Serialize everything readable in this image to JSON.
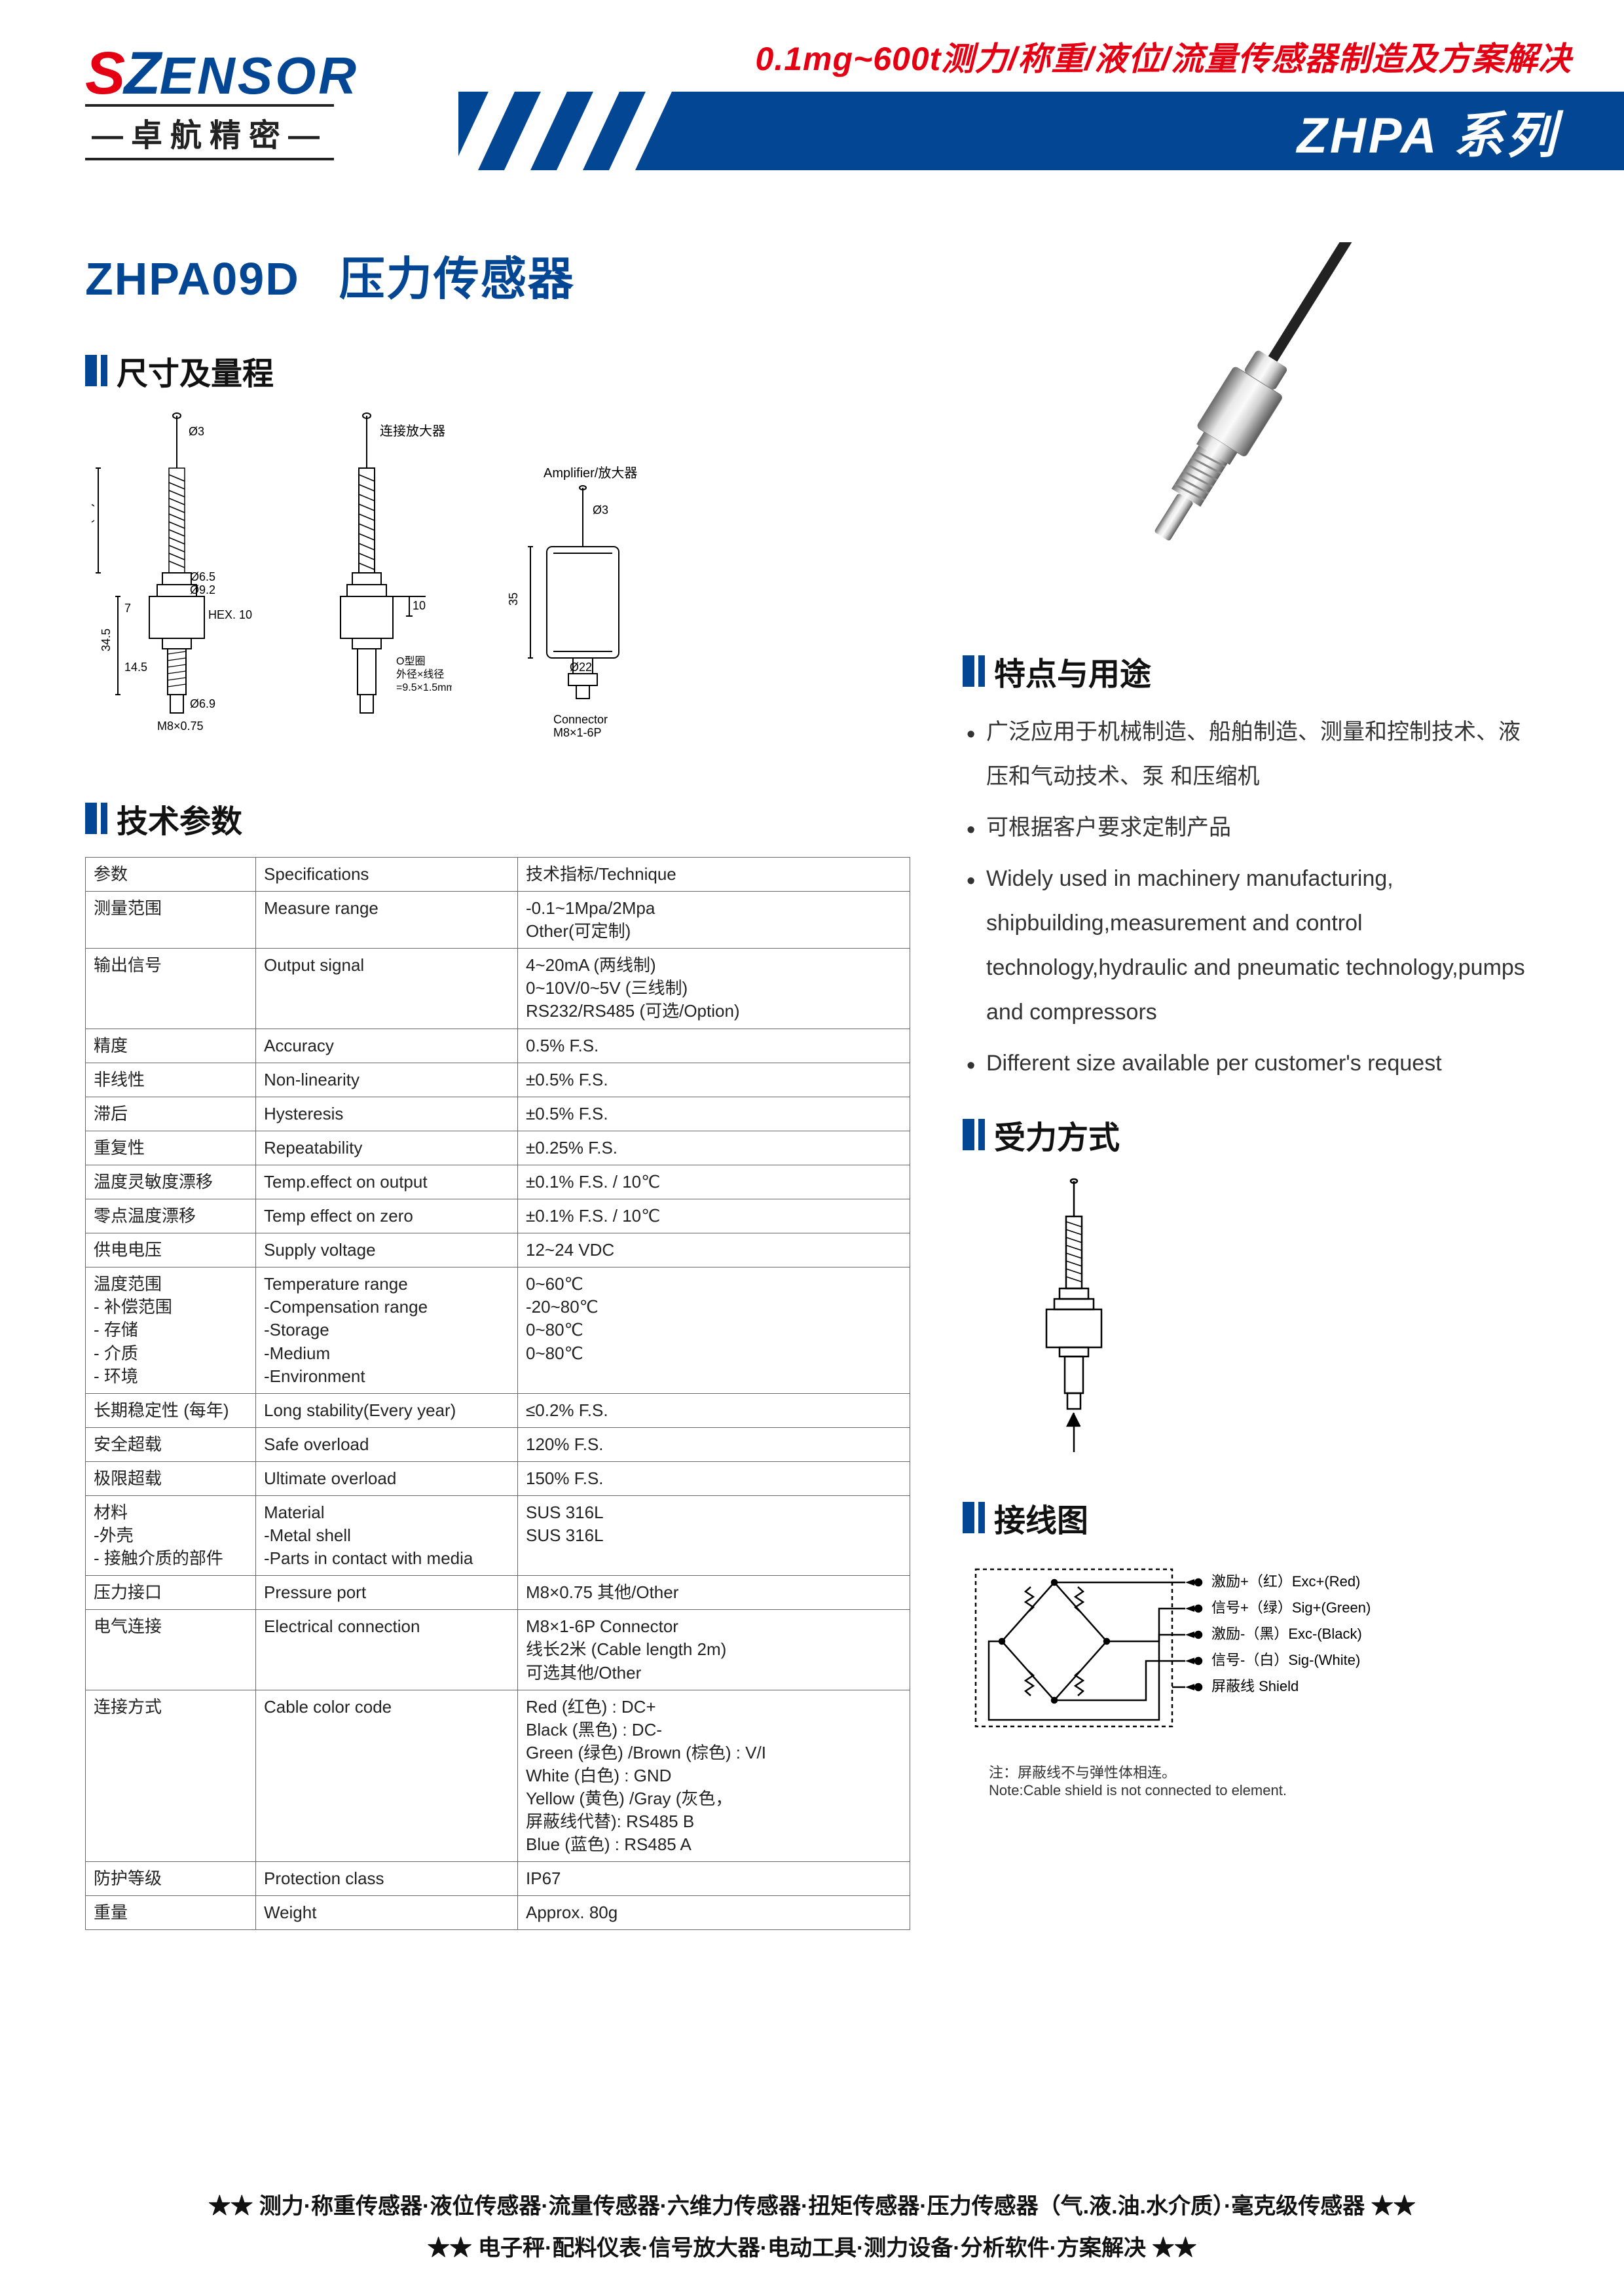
{
  "brand": {
    "logo_s": "S",
    "logo_z": "Z",
    "logo_rest": "ENSOR",
    "sub": "—卓航精密—",
    "tagline": "0.1mg~600t测力/称重/液位/流量传感器制造及方案解决",
    "series": "ZHPA 系列"
  },
  "product": {
    "model": "ZHPA09D",
    "name": "压力传感器"
  },
  "sections": {
    "dims": "尺寸及量程",
    "specs": "技术参数",
    "features": "特点与用途",
    "force": "受力方式",
    "wiring": "接线图"
  },
  "drawing_labels": {
    "cable": "连接放大器",
    "amp": "Amplifier/放大器",
    "hex": "HEX. 10",
    "oring": "O型圈\n外径×线径\n=9.5×1.5mm",
    "conn": "Connector\nM8×1-6P",
    "m8": "M8×0.75",
    "d3": "Ø3",
    "d65": "Ø6.5",
    "d69": "Ø6.9",
    "d92": "Ø9.2",
    "d22": "Ø22",
    "h14": "(14)",
    "h7": "7",
    "h145": "14.5",
    "h35": "35",
    "h10": "10",
    "h345": "34.5"
  },
  "spec_head": {
    "c1": "参数",
    "c2": "Specifications",
    "c3": "技术指标/Technique"
  },
  "specs": [
    {
      "c1": "测量范围",
      "c2": "Measure range",
      "c3": "-0.1~1Mpa/2Mpa\nOther(可定制)"
    },
    {
      "c1": "输出信号",
      "c2": "Output signal",
      "c3": "4~20mA (两线制)\n0~10V/0~5V (三线制)\nRS232/RS485 (可选/Option)"
    },
    {
      "c1": "精度",
      "c2": "Accuracy",
      "c3": "0.5% F.S."
    },
    {
      "c1": "非线性",
      "c2": "Non-linearity",
      "c3": "±0.5% F.S."
    },
    {
      "c1": "滞后",
      "c2": "Hysteresis",
      "c3": "±0.5% F.S."
    },
    {
      "c1": "重复性",
      "c2": "Repeatability",
      "c3": "±0.25% F.S."
    },
    {
      "c1": "温度灵敏度漂移",
      "c2": "Temp.effect on output",
      "c3": "±0.1% F.S. / 10℃"
    },
    {
      "c1": "零点温度漂移",
      "c2": "Temp effect on zero",
      "c3": "±0.1% F.S. / 10℃"
    },
    {
      "c1": "供电电压",
      "c2": "Supply voltage",
      "c3": "12~24 VDC"
    },
    {
      "c1": "温度范围\n - 补偿范围\n - 存储\n - 介质\n - 环境",
      "c2": "Temperature range\n-Compensation range\n-Storage\n-Medium\n-Environment",
      "c3": "0~60℃\n-20~80℃\n0~80℃\n0~80℃"
    },
    {
      "c1": "长期稳定性 (每年)",
      "c2": "Long stability(Every year)",
      "c3": "≤0.2% F.S."
    },
    {
      "c1": "安全超载",
      "c2": "Safe overload",
      "c3": "120% F.S."
    },
    {
      "c1": "极限超载",
      "c2": "Ultimate overload",
      "c3": "150% F.S."
    },
    {
      "c1": "材料\n -外壳\n - 接触介质的部件",
      "c2": "Material\n-Metal shell\n-Parts in contact with media",
      "c3": "SUS 316L\nSUS 316L"
    },
    {
      "c1": "压力接口",
      "c2": "Pressure port",
      "c3": "M8×0.75  其他/Other"
    },
    {
      "c1": "电气连接",
      "c2": "Electrical connection",
      "c3": "M8×1-6P Connector\n线长2米 (Cable length 2m)\n可选其他/Other"
    },
    {
      "c1": "连接方式",
      "c2": "Cable color code",
      "c3": "Red (红色) : DC+\nBlack (黑色) : DC-\nGreen (绿色) /Brown (棕色) : V/I\nWhite (白色) : GND\nYellow (黄色) /Gray (灰色，\n屏蔽线代替): RS485 B\nBlue (蓝色) : RS485 A"
    },
    {
      "c1": "防护等级",
      "c2": "Protection class",
      "c3": "IP67"
    },
    {
      "c1": "重量",
      "c2": "Weight",
      "c3": "Approx. 80g"
    }
  ],
  "features": [
    "广泛应用于机械制造、船舶制造、测量和控制技术、液压和气动技术、泵 和压缩机",
    "可根据客户要求定制产品",
    "Widely used in machinery manufacturing, shipbuilding,measurement and control technology,hydraulic and pneumatic technology,pumps and compressors",
    "Different size available per customer's request"
  ],
  "wiring_labels": {
    "exc_p": "激励+（红）Exc+(Red)",
    "sig_p": "信号+（绿）Sig+(Green)",
    "exc_n": "激励-（黑）Exc-(Black)",
    "sig_n": "信号-（白）Sig-(White)",
    "shield": "屏蔽线  Shield",
    "note_cn": "注：屏蔽线不与弹性体相连。",
    "note_en": "Note:Cable shield is not connected to element."
  },
  "footer": {
    "l1": "★★ 测力·称重传感器·液位传感器·流量传感器·六维力传感器·扭矩传感器·压力传感器（气.液.油.水介质）·毫克级传感器 ★★",
    "l2": "★★ 电子秤·配料仪表·信号放大器·电动工具·测力设备·分析软件·方案解决 ★★"
  },
  "colors": {
    "brand_blue": "#034694",
    "brand_red": "#e40012",
    "text": "#222",
    "border": "#666"
  }
}
